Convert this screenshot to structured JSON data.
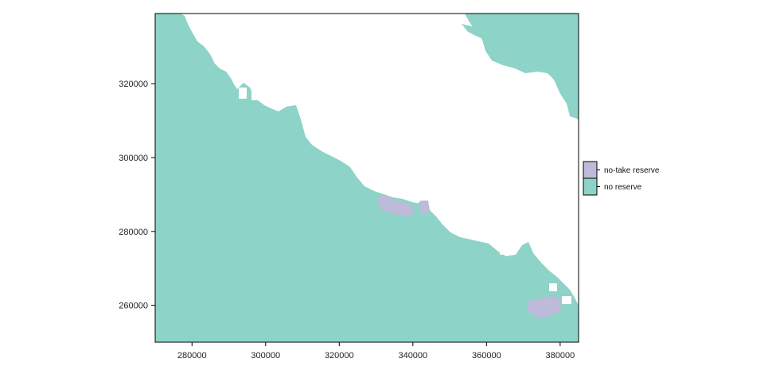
{
  "chart_data": {
    "type": "map",
    "x_ticks": [
      280000,
      300000,
      320000,
      340000,
      360000,
      380000
    ],
    "y_ticks": [
      260000,
      280000,
      300000,
      320000
    ],
    "xlim": [
      270000,
      385000
    ],
    "ylim": [
      250000,
      339000
    ],
    "legend": {
      "position": "right",
      "entries": [
        {
          "label": "no-take reserve",
          "color": "#BEBADA"
        },
        {
          "label": "no reserve",
          "color": "#8DD3C7"
        }
      ]
    },
    "colors": {
      "sea": "#8DD3C7",
      "reserve": "#BEBADA",
      "land": "#FFFFFF"
    }
  }
}
